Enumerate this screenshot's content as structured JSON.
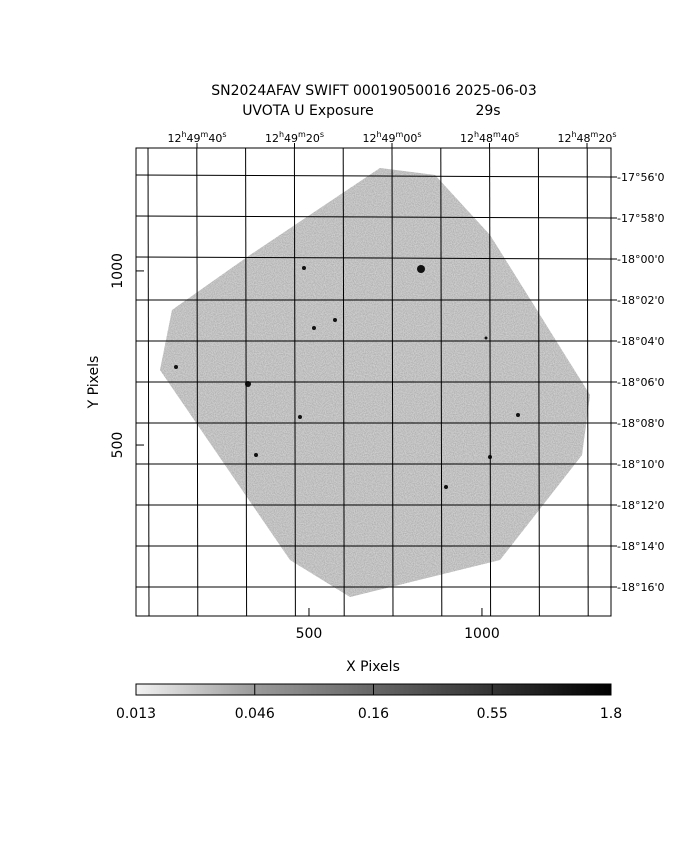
{
  "title": "SN2024AFAV SWIFT 00019050016 2025-06-03",
  "exposure_label": "UVOTA U Exposure",
  "exposure_time": "29s",
  "x_axis": {
    "label": "X Pixels",
    "ticks": [
      500,
      1000
    ],
    "lim": [
      0,
      1373
    ]
  },
  "y_axis": {
    "label": "Y Pixels",
    "ticks": [
      500,
      1000
    ],
    "lim": [
      9,
      1353
    ]
  },
  "ra_ticks": [
    [
      "12",
      "h",
      "49",
      "m",
      "40",
      "s"
    ],
    [
      "12",
      "h",
      "49",
      "m",
      "20",
      "s"
    ],
    [
      "12",
      "h",
      "49",
      "m",
      "00",
      "s"
    ],
    [
      "12",
      "h",
      "48",
      "m",
      "40",
      "s"
    ],
    [
      "12",
      "h",
      "48",
      "m",
      "20",
      "s"
    ]
  ],
  "dec_ticks": [
    "-17°56'0",
    "-17°58'0",
    "-18°00'0",
    "-18°02'0",
    "-18°04'0",
    "-18°06'0",
    "-18°08'0",
    "-18°10'0",
    "-18°12'0",
    "-18°14'0",
    "-18°16'0"
  ],
  "colorbar_ticks": [
    0.013,
    0.046,
    0.16,
    0.55,
    1.8
  ]
}
